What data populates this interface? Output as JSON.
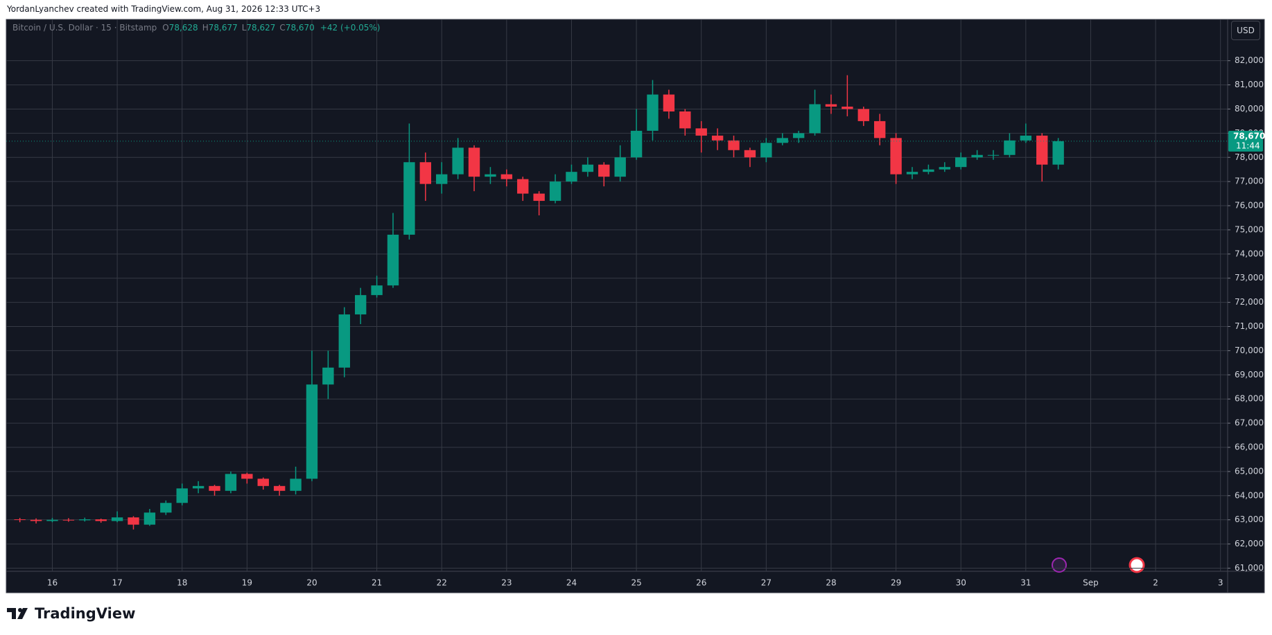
{
  "header": "YordanLyanchev created with TradingView.com, Aug 31, 2026 12:33 UTC+3",
  "brand": "TradingView",
  "currency_button": "USD",
  "chart_data": {
    "type": "candlestick",
    "title": "Bitcoin / U.S. Dollar · 15 · Bitstamp",
    "ohlc_legend": [
      {
        "label": "O",
        "value": "78,628"
      },
      {
        "label": "H",
        "value": "78,677"
      },
      {
        "label": "L",
        "value": "78,627"
      },
      {
        "label": "C",
        "value": "78,670"
      }
    ],
    "change": "+42 (+0.05%)",
    "up_color": "#089981",
    "down_color": "#f23645",
    "x": [
      15.5,
      15.75,
      16,
      16.25,
      16.5,
      16.75,
      17,
      17.25,
      17.5,
      17.75,
      18,
      18.25,
      18.5,
      18.75,
      19,
      19.25,
      19.5,
      19.75,
      20,
      20.25,
      20.5,
      20.75,
      21,
      21.25,
      21.5,
      21.75,
      22,
      22.25,
      22.5,
      22.75,
      23,
      23.25,
      23.5,
      23.75,
      24,
      24.25,
      24.5,
      24.75,
      25,
      25.25,
      25.5,
      25.75,
      26,
      26.25,
      26.5,
      26.75,
      27,
      27.25,
      27.5,
      27.75,
      28,
      28.25,
      28.5,
      28.75,
      29,
      29.25,
      29.5,
      29.75,
      30,
      30.25,
      30.5,
      30.75,
      31,
      31.25,
      31.5
    ],
    "open": [
      63020,
      63000,
      62950,
      63000,
      62980,
      63020,
      62950,
      63100,
      62800,
      63300,
      63700,
      64300,
      64400,
      64200,
      64900,
      64700,
      64400,
      64200,
      64700,
      68600,
      69300,
      71500,
      72300,
      72700,
      74800,
      77800,
      76900,
      77300,
      78400,
      77200,
      77300,
      77100,
      76500,
      76200,
      77000,
      77400,
      77700,
      77200,
      78000,
      79100,
      80600,
      79900,
      79200,
      78900,
      78700,
      78300,
      78000,
      78600,
      78800,
      79000,
      80200,
      80100,
      80000,
      79500,
      78800,
      77300,
      77400,
      77500,
      77600,
      78000,
      78100,
      78100,
      78700,
      78900,
      77700
    ],
    "high": [
      63080,
      63060,
      63080,
      63070,
      63090,
      63050,
      63350,
      63150,
      63450,
      63800,
      64500,
      64600,
      64450,
      65000,
      64950,
      64750,
      64450,
      65200,
      70000,
      70000,
      71800,
      72600,
      73100,
      75700,
      79400,
      78200,
      77800,
      78800,
      78500,
      77600,
      77500,
      77200,
      76600,
      77300,
      77700,
      78000,
      77800,
      78500,
      80000,
      81200,
      80800,
      80000,
      79500,
      79200,
      78900,
      78400,
      78800,
      79000,
      79100,
      80800,
      80600,
      81400,
      80100,
      79800,
      79000,
      77600,
      77700,
      77800,
      78200,
      78300,
      78300,
      79000,
      79400,
      79000,
      78800
    ],
    "low": [
      62900,
      62850,
      62900,
      62920,
      62930,
      62880,
      62900,
      62600,
      62750,
      63200,
      63600,
      64100,
      64000,
      64100,
      64500,
      64250,
      64000,
      64050,
      64600,
      68000,
      68900,
      71100,
      72200,
      72600,
      74600,
      76200,
      76500,
      77100,
      76600,
      76900,
      76800,
      76200,
      75600,
      76100,
      76900,
      77200,
      76800,
      77000,
      77900,
      78700,
      79600,
      78900,
      78200,
      78300,
      78000,
      77600,
      77800,
      78500,
      78600,
      78900,
      79800,
      79700,
      79300,
      78500,
      76900,
      77100,
      77300,
      77400,
      77500,
      77900,
      77900,
      78000,
      78600,
      77000,
      77500
    ],
    "close": [
      63000,
      62950,
      63000,
      62980,
      63020,
      62950,
      63100,
      62800,
      63300,
      63700,
      64300,
      64400,
      64200,
      64900,
      64700,
      64400,
      64200,
      64700,
      68600,
      69300,
      71500,
      72300,
      72700,
      74800,
      77800,
      76900,
      77300,
      78400,
      77200,
      77300,
      77100,
      76500,
      76200,
      77000,
      77400,
      77700,
      77200,
      78000,
      79100,
      80600,
      79900,
      79200,
      78900,
      78700,
      78300,
      78000,
      78600,
      78800,
      79000,
      80200,
      80100,
      80000,
      79500,
      78800,
      77300,
      77400,
      77500,
      77600,
      78000,
      78100,
      78100,
      78700,
      78900,
      77700,
      78670
    ],
    "last_price": {
      "value": 78670,
      "label": "78,670"
    },
    "countdown": "11:44",
    "xlim": [
      15.29,
      34.11
    ],
    "ylim": [
      60870,
      83710
    ],
    "xticks": [
      16,
      17,
      18,
      19,
      20,
      21,
      22,
      23,
      24,
      25,
      26,
      27,
      28,
      29,
      30,
      31,
      {
        "value": 32,
        "label": "Sep"
      },
      {
        "value": 33,
        "label": "2"
      },
      {
        "value": 34,
        "label": "3"
      }
    ],
    "yticks": [
      {
        "value": 61000,
        "label": "61,000"
      },
      {
        "value": 62000,
        "label": "62,000"
      },
      {
        "value": 63000,
        "label": "63,000"
      },
      {
        "value": 64000,
        "label": "64,000"
      },
      {
        "value": 65000,
        "label": "65,000"
      },
      {
        "value": 66000,
        "label": "66,000"
      },
      {
        "value": 67000,
        "label": "67,000"
      },
      {
        "value": 68000,
        "label": "68,000"
      },
      {
        "value": 69000,
        "label": "69,000"
      },
      {
        "value": 70000,
        "label": "70,000"
      },
      {
        "value": 71000,
        "label": "71,000"
      },
      {
        "value": 72000,
        "label": "72,000"
      },
      {
        "value": 73000,
        "label": "73,000"
      },
      {
        "value": 74000,
        "label": "74,000"
      },
      {
        "value": 75000,
        "label": "75,000"
      },
      {
        "value": 76000,
        "label": "76,000"
      },
      {
        "value": 77000,
        "label": "77,000"
      },
      {
        "value": 78000,
        "label": "78,000"
      },
      {
        "value": 79000,
        "label": "79,000"
      },
      {
        "value": 80000,
        "label": "80,000"
      },
      {
        "value": 81000,
        "label": "81,000"
      },
      {
        "value": 82000,
        "label": "82,000"
      }
    ],
    "grid": true
  }
}
